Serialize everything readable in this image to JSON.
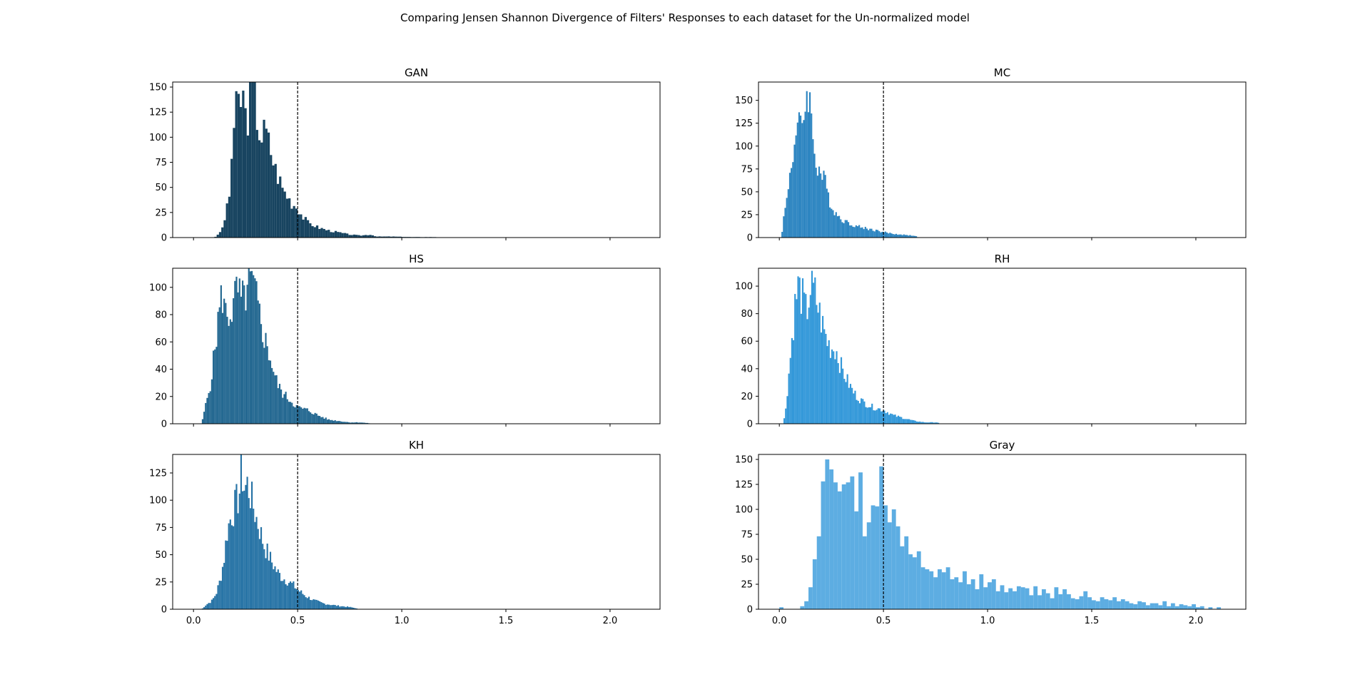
{
  "figure": {
    "title": "Comparing Jensen Shannon Divergence of Filters' Responses to each dataset for the Un-normalized model",
    "reference_line_x": 0.5,
    "reference_line_style": "dashed",
    "x_ticks": [
      0.0,
      0.5,
      1.0,
      1.5,
      2.0
    ],
    "x_tick_labels": [
      "0.0",
      "0.5",
      "1.0",
      "1.5",
      "2.0"
    ],
    "x_tick_labels_shown_on": "bottom row only",
    "shared_x": "per column"
  },
  "chart_data": [
    {
      "type": "bar",
      "title": "GAN",
      "color": "#184460",
      "xlim": [
        -0.1,
        2.24
      ],
      "ylim": [
        0,
        155
      ],
      "y_ticks": [
        0,
        25,
        50,
        75,
        100,
        125,
        150
      ],
      "bin_width": 0.0111,
      "anchors": [
        [
          0.1,
          0
        ],
        [
          0.12,
          3
        ],
        [
          0.14,
          10
        ],
        [
          0.16,
          28
        ],
        [
          0.175,
          45
        ],
        [
          0.185,
          90
        ],
        [
          0.2,
          122
        ],
        [
          0.22,
          135
        ],
        [
          0.24,
          140
        ],
        [
          0.255,
          110
        ],
        [
          0.27,
          143
        ],
        [
          0.285,
          148
        ],
        [
          0.3,
          130
        ],
        [
          0.315,
          108
        ],
        [
          0.33,
          100
        ],
        [
          0.345,
          108
        ],
        [
          0.36,
          95
        ],
        [
          0.375,
          85
        ],
        [
          0.39,
          70
        ],
        [
          0.41,
          60
        ],
        [
          0.43,
          48
        ],
        [
          0.45,
          42
        ],
        [
          0.47,
          35
        ],
        [
          0.5,
          30
        ],
        [
          0.52,
          22
        ],
        [
          0.55,
          15
        ],
        [
          0.6,
          10
        ],
        [
          0.65,
          7
        ],
        [
          0.7,
          5
        ],
        [
          0.75,
          3
        ],
        [
          0.8,
          2
        ],
        [
          0.85,
          3
        ],
        [
          0.88,
          1
        ],
        [
          0.95,
          1
        ],
        [
          1.05,
          0.5
        ],
        [
          1.16,
          0.5
        ],
        [
          1.17,
          0
        ]
      ]
    },
    {
      "type": "bar",
      "title": "MC",
      "color": "#2d85c1",
      "xlim": [
        -0.1,
        2.24
      ],
      "ylim": [
        0,
        170
      ],
      "y_ticks": [
        0,
        25,
        50,
        75,
        100,
        125,
        150
      ],
      "bin_width": 0.0074,
      "anchors": [
        [
          0.01,
          0
        ],
        [
          0.02,
          20
        ],
        [
          0.035,
          40
        ],
        [
          0.05,
          70
        ],
        [
          0.07,
          100
        ],
        [
          0.085,
          115
        ],
        [
          0.1,
          120
        ],
        [
          0.12,
          140
        ],
        [
          0.14,
          165
        ],
        [
          0.16,
          110
        ],
        [
          0.18,
          80
        ],
        [
          0.2,
          70
        ],
        [
          0.22,
          60
        ],
        [
          0.24,
          42
        ],
        [
          0.26,
          30
        ],
        [
          0.29,
          22
        ],
        [
          0.33,
          16
        ],
        [
          0.38,
          12
        ],
        [
          0.44,
          9
        ],
        [
          0.5,
          6
        ],
        [
          0.55,
          4
        ],
        [
          0.6,
          3
        ],
        [
          0.65,
          2
        ],
        [
          0.67,
          0
        ]
      ]
    },
    {
      "type": "bar",
      "title": "HS",
      "color": "#246891",
      "xlim": [
        -0.1,
        2.24
      ],
      "ylim": [
        0,
        114
      ],
      "y_ticks": [
        0,
        20,
        40,
        60,
        80,
        100
      ],
      "bin_width": 0.0074,
      "anchors": [
        [
          0.04,
          0
        ],
        [
          0.05,
          8
        ],
        [
          0.065,
          18
        ],
        [
          0.08,
          28
        ],
        [
          0.095,
          45
        ],
        [
          0.11,
          65
        ],
        [
          0.125,
          85
        ],
        [
          0.14,
          95
        ],
        [
          0.155,
          80
        ],
        [
          0.17,
          80
        ],
        [
          0.19,
          85
        ],
        [
          0.21,
          100
        ],
        [
          0.23,
          88
        ],
        [
          0.25,
          95
        ],
        [
          0.27,
          104
        ],
        [
          0.29,
          100
        ],
        [
          0.31,
          85
        ],
        [
          0.33,
          70
        ],
        [
          0.35,
          58
        ],
        [
          0.37,
          48
        ],
        [
          0.39,
          35
        ],
        [
          0.41,
          27
        ],
        [
          0.43,
          22
        ],
        [
          0.46,
          18
        ],
        [
          0.5,
          12
        ],
        [
          0.55,
          10
        ],
        [
          0.6,
          6
        ],
        [
          0.65,
          3
        ],
        [
          0.7,
          2
        ],
        [
          0.75,
          1
        ],
        [
          0.8,
          1
        ],
        [
          0.87,
          0
        ]
      ]
    },
    {
      "type": "bar",
      "title": "RH",
      "color": "#3398d9",
      "xlim": [
        -0.1,
        2.24
      ],
      "ylim": [
        0,
        113
      ],
      "y_ticks": [
        0,
        20,
        40,
        60,
        80,
        100
      ],
      "bin_width": 0.0074,
      "anchors": [
        [
          0.02,
          0
        ],
        [
          0.03,
          10
        ],
        [
          0.045,
          35
        ],
        [
          0.06,
          60
        ],
        [
          0.075,
          85
        ],
        [
          0.09,
          100
        ],
        [
          0.11,
          92
        ],
        [
          0.13,
          80
        ],
        [
          0.15,
          98
        ],
        [
          0.17,
          95
        ],
        [
          0.19,
          82
        ],
        [
          0.21,
          70
        ],
        [
          0.23,
          60
        ],
        [
          0.25,
          55
        ],
        [
          0.27,
          55
        ],
        [
          0.3,
          40
        ],
        [
          0.33,
          30
        ],
        [
          0.36,
          22
        ],
        [
          0.4,
          16
        ],
        [
          0.45,
          12
        ],
        [
          0.5,
          10
        ],
        [
          0.55,
          6
        ],
        [
          0.6,
          4
        ],
        [
          0.65,
          2
        ],
        [
          0.7,
          1
        ],
        [
          0.76,
          1
        ],
        [
          0.77,
          0
        ]
      ]
    },
    {
      "type": "bar",
      "title": "KH",
      "color": "#2874a6",
      "xlim": [
        -0.1,
        2.24
      ],
      "ylim": [
        0,
        142
      ],
      "y_ticks": [
        0,
        25,
        50,
        75,
        100,
        125
      ],
      "bin_width": 0.0074,
      "anchors": [
        [
          0.04,
          0
        ],
        [
          0.06,
          4
        ],
        [
          0.09,
          8
        ],
        [
          0.11,
          15
        ],
        [
          0.13,
          28
        ],
        [
          0.15,
          50
        ],
        [
          0.16,
          70
        ],
        [
          0.18,
          85
        ],
        [
          0.2,
          95
        ],
        [
          0.22,
          105
        ],
        [
          0.23,
          130
        ],
        [
          0.245,
          110
        ],
        [
          0.26,
          115
        ],
        [
          0.28,
          100
        ],
        [
          0.3,
          85
        ],
        [
          0.32,
          72
        ],
        [
          0.34,
          58
        ],
        [
          0.36,
          50
        ],
        [
          0.38,
          42
        ],
        [
          0.4,
          35
        ],
        [
          0.42,
          30
        ],
        [
          0.45,
          26
        ],
        [
          0.48,
          22
        ],
        [
          0.5,
          18
        ],
        [
          0.54,
          12
        ],
        [
          0.58,
          8
        ],
        [
          0.63,
          5
        ],
        [
          0.7,
          3
        ],
        [
          0.75,
          2
        ],
        [
          0.78,
          1
        ],
        [
          0.79,
          0
        ]
      ]
    },
    {
      "type": "bar",
      "title": "Gray",
      "color": "#5dade2",
      "xlim": [
        -0.1,
        2.24
      ],
      "ylim": [
        0,
        155
      ],
      "y_ticks": [
        0,
        25,
        50,
        75,
        100,
        125,
        150
      ],
      "bin_width": 0.02,
      "bins": [
        [
          0.0,
          2
        ],
        [
          0.02,
          0
        ],
        [
          0.04,
          0
        ],
        [
          0.06,
          0
        ],
        [
          0.08,
          0
        ],
        [
          0.1,
          3
        ],
        [
          0.12,
          8
        ],
        [
          0.14,
          22
        ],
        [
          0.16,
          50
        ],
        [
          0.18,
          73
        ],
        [
          0.2,
          128
        ],
        [
          0.22,
          150
        ],
        [
          0.24,
          140
        ],
        [
          0.26,
          127
        ],
        [
          0.28,
          118
        ],
        [
          0.3,
          125
        ],
        [
          0.32,
          127
        ],
        [
          0.34,
          133
        ],
        [
          0.36,
          98
        ],
        [
          0.38,
          137
        ],
        [
          0.4,
          73
        ],
        [
          0.42,
          87
        ],
        [
          0.44,
          104
        ],
        [
          0.46,
          103
        ],
        [
          0.48,
          143
        ],
        [
          0.5,
          104
        ],
        [
          0.52,
          87
        ],
        [
          0.54,
          100
        ],
        [
          0.56,
          83
        ],
        [
          0.58,
          63
        ],
        [
          0.6,
          73
        ],
        [
          0.62,
          55
        ],
        [
          0.64,
          52
        ],
        [
          0.66,
          58
        ],
        [
          0.68,
          42
        ],
        [
          0.7,
          40
        ],
        [
          0.72,
          38
        ],
        [
          0.74,
          32
        ],
        [
          0.76,
          40
        ],
        [
          0.78,
          37
        ],
        [
          0.8,
          42
        ],
        [
          0.82,
          30
        ],
        [
          0.84,
          32
        ],
        [
          0.86,
          27
        ],
        [
          0.88,
          38
        ],
        [
          0.9,
          25
        ],
        [
          0.92,
          30
        ],
        [
          0.94,
          20
        ],
        [
          0.96,
          35
        ],
        [
          0.98,
          22
        ],
        [
          1.0,
          27
        ],
        [
          1.02,
          30
        ],
        [
          1.04,
          18
        ],
        [
          1.06,
          24
        ],
        [
          1.08,
          17
        ],
        [
          1.1,
          21
        ],
        [
          1.12,
          18
        ],
        [
          1.14,
          23
        ],
        [
          1.16,
          22
        ],
        [
          1.18,
          21
        ],
        [
          1.2,
          14
        ],
        [
          1.22,
          23
        ],
        [
          1.24,
          14
        ],
        [
          1.26,
          20
        ],
        [
          1.28,
          16
        ],
        [
          1.3,
          11
        ],
        [
          1.32,
          22
        ],
        [
          1.34,
          15
        ],
        [
          1.36,
          20
        ],
        [
          1.38,
          15
        ],
        [
          1.4,
          11
        ],
        [
          1.42,
          10
        ],
        [
          1.44,
          13
        ],
        [
          1.46,
          18
        ],
        [
          1.48,
          12
        ],
        [
          1.5,
          9
        ],
        [
          1.52,
          8
        ],
        [
          1.54,
          12
        ],
        [
          1.56,
          10
        ],
        [
          1.58,
          9
        ],
        [
          1.6,
          12
        ],
        [
          1.62,
          8
        ],
        [
          1.64,
          10
        ],
        [
          1.66,
          8
        ],
        [
          1.68,
          6
        ],
        [
          1.7,
          5
        ],
        [
          1.72,
          8
        ],
        [
          1.74,
          7
        ],
        [
          1.76,
          4
        ],
        [
          1.78,
          6
        ],
        [
          1.8,
          6
        ],
        [
          1.82,
          4
        ],
        [
          1.84,
          8
        ],
        [
          1.86,
          3
        ],
        [
          1.88,
          6
        ],
        [
          1.9,
          3
        ],
        [
          1.92,
          5
        ],
        [
          1.94,
          4
        ],
        [
          1.96,
          3
        ],
        [
          1.98,
          5
        ],
        [
          2.0,
          2
        ],
        [
          2.02,
          3
        ],
        [
          2.04,
          0
        ],
        [
          2.06,
          2
        ],
        [
          2.08,
          0
        ],
        [
          2.1,
          2
        ]
      ]
    }
  ]
}
